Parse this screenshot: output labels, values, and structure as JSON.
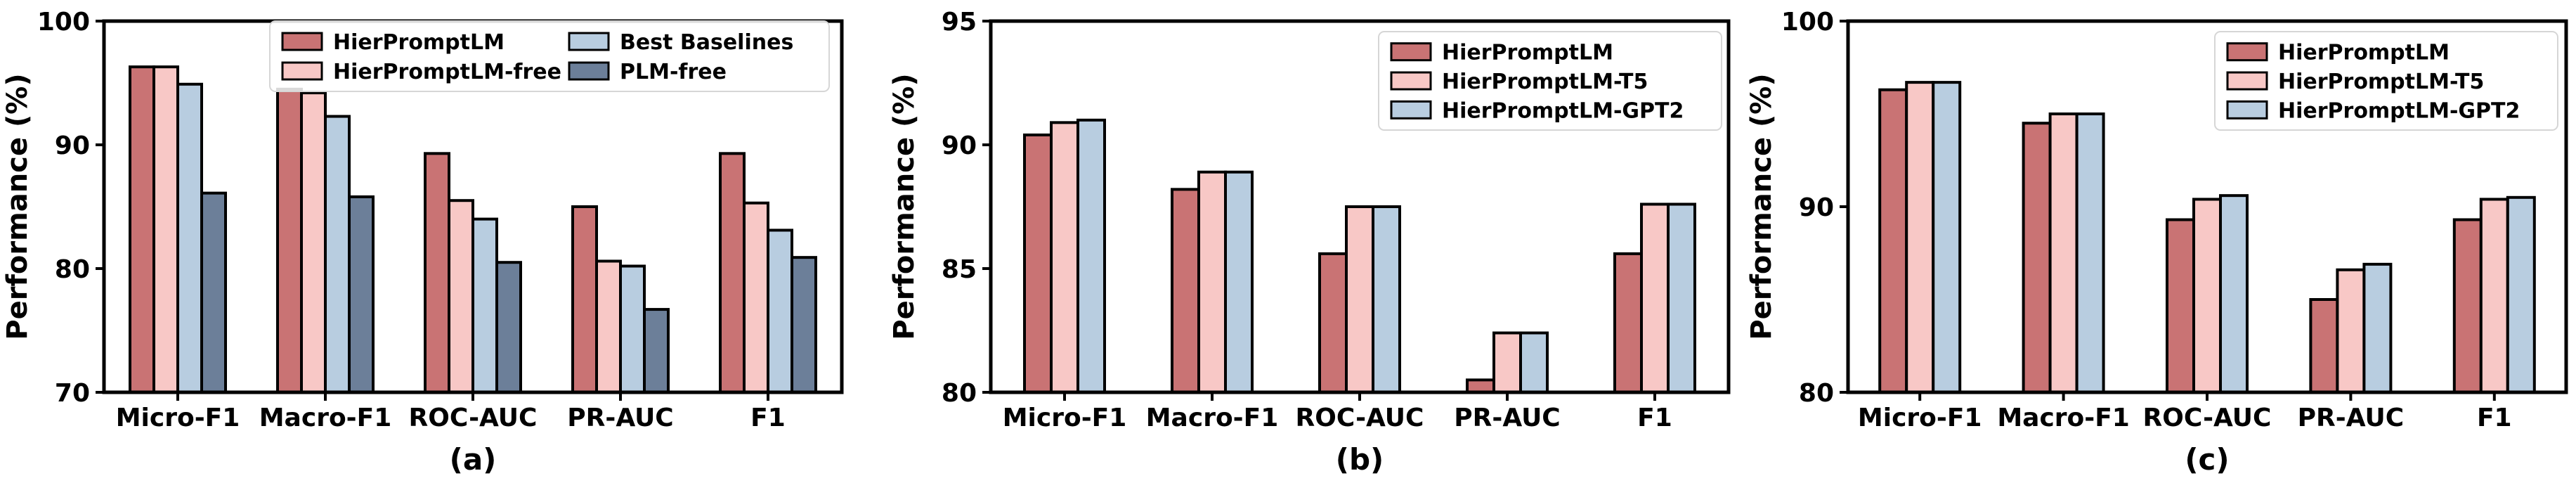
{
  "chart_data": [
    {
      "type": "bar",
      "panel_label": "(a)",
      "ylabel": "Performance (%)",
      "xlabel": "",
      "ylim": [
        70,
        100
      ],
      "yticks": [
        70,
        80,
        90,
        100
      ],
      "legend_placement": "top-center",
      "legend_columns": 2,
      "categories": [
        "Micro-F1",
        "Macro-F1",
        "ROC-AUC",
        "PR-AUC",
        "F1"
      ],
      "series": [
        {
          "name": "HierPromptLM",
          "color": "#c97374",
          "values": [
            96.3,
            94.5,
            89.3,
            85.0,
            89.3
          ]
        },
        {
          "name": "HierPromptLM-free",
          "color": "#f8c8c6",
          "values": [
            96.3,
            94.2,
            85.5,
            80.6,
            85.3
          ]
        },
        {
          "name": "Best Baselines",
          "color": "#b8cde0",
          "values": [
            94.9,
            92.3,
            84.0,
            80.2,
            83.1
          ]
        },
        {
          "name": "PLM-free",
          "color": "#6c7f99",
          "values": [
            86.1,
            85.8,
            80.5,
            76.7,
            80.9
          ]
        }
      ]
    },
    {
      "type": "bar",
      "panel_label": "(b)",
      "ylabel": "Performance (%)",
      "xlabel": "",
      "ylim": [
        80,
        95
      ],
      "yticks": [
        80,
        85,
        90,
        95
      ],
      "legend_placement": "top-right",
      "legend_columns": 1,
      "categories": [
        "Micro-F1",
        "Macro-F1",
        "ROC-AUC",
        "PR-AUC",
        "F1"
      ],
      "series": [
        {
          "name": "HierPromptLM",
          "color": "#c97374",
          "values": [
            90.4,
            88.2,
            85.6,
            80.5,
            85.6
          ]
        },
        {
          "name": "HierPromptLM-T5",
          "color": "#f8c8c6",
          "values": [
            90.9,
            88.9,
            87.5,
            82.4,
            87.6
          ]
        },
        {
          "name": "HierPromptLM-GPT2",
          "color": "#b8cde0",
          "values": [
            91.0,
            88.9,
            87.5,
            82.4,
            87.6
          ]
        }
      ]
    },
    {
      "type": "bar",
      "panel_label": "(c)",
      "ylabel": "Performance (%)",
      "xlabel": "",
      "ylim": [
        80,
        100
      ],
      "yticks": [
        80,
        90,
        100
      ],
      "legend_placement": "top-right",
      "legend_columns": 1,
      "categories": [
        "Micro-F1",
        "Macro-F1",
        "ROC-AUC",
        "PR-AUC",
        "F1"
      ],
      "series": [
        {
          "name": "HierPromptLM",
          "color": "#c97374",
          "values": [
            96.3,
            94.5,
            89.3,
            85.0,
            89.3
          ]
        },
        {
          "name": "HierPromptLM-T5",
          "color": "#f8c8c6",
          "values": [
            96.7,
            95.0,
            90.4,
            86.6,
            90.4
          ]
        },
        {
          "name": "HierPromptLM-GPT2",
          "color": "#b8cde0",
          "values": [
            96.7,
            95.0,
            90.6,
            86.9,
            90.5
          ]
        }
      ]
    }
  ]
}
